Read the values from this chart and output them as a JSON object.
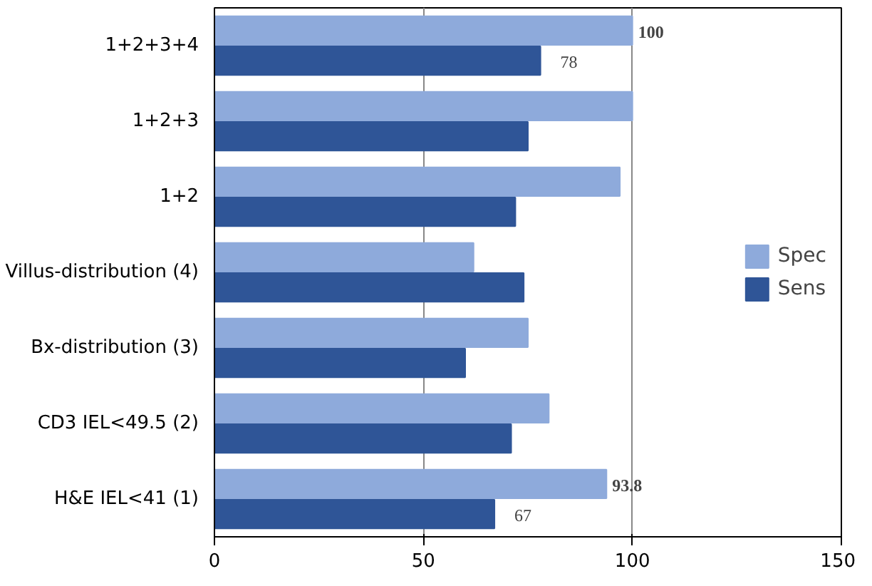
{
  "chart_data": {
    "type": "bar",
    "orientation": "horizontal",
    "categories": [
      "1+2+3+4",
      "1+2+3",
      "1+2",
      "Villus-distribution (4)",
      "Bx-distribution (3)",
      "CD3 IEL<49.5 (2)",
      "H&E IEL<41 (1)"
    ],
    "series": [
      {
        "name": "Spec",
        "color": "#8eaadb",
        "values": [
          100,
          100,
          97,
          62,
          75,
          80,
          93.8
        ],
        "value_labels": [
          "100",
          null,
          null,
          null,
          null,
          null,
          "93.8"
        ]
      },
      {
        "name": "Sens",
        "color": "#2f5597",
        "values": [
          78,
          75,
          72,
          74,
          60,
          71,
          67
        ],
        "value_labels": [
          "78",
          null,
          null,
          null,
          null,
          null,
          "67"
        ]
      }
    ],
    "xlim": [
      0,
      150
    ],
    "xticks": [
      0,
      50,
      100,
      150
    ],
    "grid": "x",
    "legend": "right"
  }
}
